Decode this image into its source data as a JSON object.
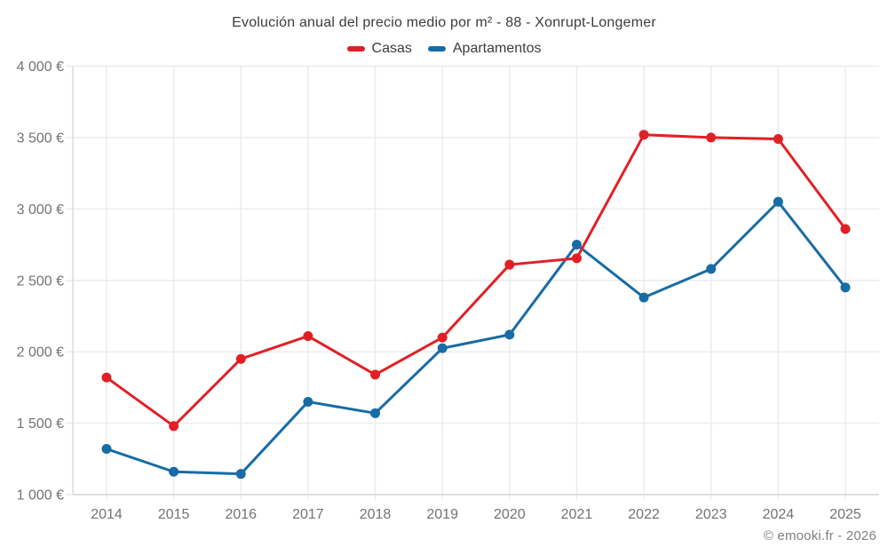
{
  "chart": {
    "title": "Evolución anual del precio medio por m² - 88 - Xonrupt-Longemer"
  },
  "footer": {
    "copyright": "© emooki.fr - 2026"
  },
  "colors": {
    "casas": "#e12026",
    "apartamentos": "#176ca5",
    "grid": "#ebebeb",
    "axis": "#d9d9d9",
    "tick_text": "#737373",
    "title_text": "#3c3c3c",
    "footer_text": "#808080"
  },
  "chart_data": {
    "type": "line",
    "title": "Evolución anual del precio medio por m² - 88 - Xonrupt-Longemer",
    "xlabel": "",
    "ylabel": "",
    "x_categories": [
      "2014",
      "2015",
      "2016",
      "2017",
      "2018",
      "2019",
      "2020",
      "2021",
      "2022",
      "2023",
      "2024",
      "2025"
    ],
    "series": [
      {
        "name": "Casas",
        "color": "#e12026",
        "values": [
          1820,
          1480,
          1950,
          2110,
          1840,
          2100,
          2610,
          2655,
          3520,
          3500,
          3490,
          2860
        ]
      },
      {
        "name": "Apartamentos",
        "color": "#176ca5",
        "values": [
          1320,
          1160,
          1145,
          1650,
          1570,
          2025,
          2120,
          2750,
          2380,
          2580,
          3050,
          2450
        ]
      }
    ],
    "ylim": [
      1000,
      4000
    ],
    "y_ticks": [
      {
        "value": 1000,
        "label": "1 000 €"
      },
      {
        "value": 1500,
        "label": "1 500 €"
      },
      {
        "value": 2000,
        "label": "2 000 €"
      },
      {
        "value": 2500,
        "label": "2 500 €"
      },
      {
        "value": 3000,
        "label": "3 000 €"
      },
      {
        "value": 3500,
        "label": "3 500 €"
      },
      {
        "value": 4000,
        "label": "4 000 €"
      }
    ],
    "grid": true,
    "legend_position": "top",
    "y_unit": "€",
    "marker": "circle"
  }
}
